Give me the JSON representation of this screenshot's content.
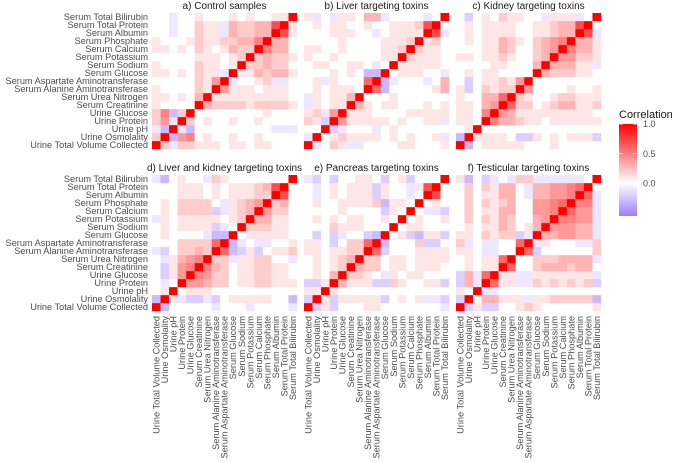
{
  "chart_data": {
    "type": "heatmap",
    "variables": [
      "Urine Total Volume Collected",
      "Urine Osmolality",
      "Urine pH",
      "Urine Protein",
      "Urine Glucose",
      "Serum Creatinine",
      "Serum Urea Nitrogen",
      "Serum Alanine Aminotransferase",
      "Serum Aspartate Aminotransferase",
      "Serum Glucose",
      "Serum Sodium",
      "Serum Potassium",
      "Serum Calcium",
      "Serum Phosphate",
      "Serum Albumin",
      "Serum Total Protein",
      "Serum Total Bilirubin"
    ],
    "matrix_format": "lower triangle, row i lists correlation with variables 0..i-1; diagonal = 1; symmetric",
    "legend": {
      "title": "Correlation",
      "ticks": [
        1.0,
        0.5,
        0.0
      ],
      "tick_labels": [
        "1.0",
        "0.5",
        "0.0"
      ],
      "range": [
        -0.55,
        1.0
      ],
      "position": "right"
    },
    "colors": {
      "high": "#ff0000",
      "mid": "#ffffff",
      "low": "#a07cff"
    },
    "panels": [
      {
        "title": "a) Control samples",
        "lower": [
          [],
          [
            0.2
          ],
          [
            -0.1,
            -0.3
          ],
          [
            0.2,
            0.4,
            -0.1
          ],
          [
            0.2,
            0.5,
            -0.3,
            0.2
          ],
          [
            0.1,
            0.0,
            0.0,
            0.0,
            0.0
          ],
          [
            0.1,
            0.1,
            0.0,
            0.1,
            0.0,
            0.3
          ],
          [
            0.1,
            0.0,
            0.0,
            0.0,
            0.0,
            0.2,
            0.1
          ],
          [
            0.0,
            0.0,
            0.0,
            0.0,
            0.0,
            0.2,
            0.1,
            0.4
          ],
          [
            0.1,
            0.1,
            0.0,
            0.1,
            0.0,
            0.2,
            0.1,
            0.1,
            -0.1
          ],
          [
            0.1,
            0.0,
            0.0,
            0.0,
            0.0,
            0.2,
            0.1,
            0.1,
            0.0,
            0.1
          ],
          [
            0.0,
            0.0,
            0.0,
            0.0,
            0.0,
            0.1,
            0.1,
            0.1,
            0.0,
            0.1,
            0.2
          ],
          [
            0.1,
            0.1,
            0.0,
            0.1,
            0.0,
            0.2,
            0.1,
            0.0,
            0.1,
            0.3,
            0.2,
            0.2
          ],
          [
            0.1,
            0.0,
            0.0,
            0.0,
            0.1,
            0.2,
            0.1,
            0.1,
            0.2,
            0.2,
            0.3,
            0.3,
            0.5
          ],
          [
            0.0,
            0.0,
            -0.1,
            0.0,
            0.0,
            0.2,
            0.1,
            0.1,
            -0.1,
            0.3,
            0.2,
            0.2,
            0.3,
            0.3
          ],
          [
            0.0,
            0.0,
            -0.1,
            0.0,
            0.0,
            0.2,
            0.1,
            0.1,
            -0.1,
            0.3,
            0.2,
            0.2,
            0.3,
            0.3,
            0.7
          ],
          [
            0.0,
            0.0,
            -0.1,
            0.0,
            0.0,
            0.1,
            0.0,
            0.0,
            0.0,
            0.1,
            0.0,
            0.1,
            0.0,
            0.0,
            0.1,
            0.1
          ]
        ]
      },
      {
        "title": "b) Liver targeting toxins",
        "lower": [
          [],
          [
            -0.1
          ],
          [
            0.0,
            0.0
          ],
          [
            0.2,
            0.1,
            -0.2
          ],
          [
            0.1,
            0.2,
            -0.1,
            0.4
          ],
          [
            -0.1,
            0.1,
            0.0,
            0.1,
            0.1
          ],
          [
            -0.1,
            0.1,
            0.0,
            0.1,
            0.1,
            0.3
          ],
          [
            0.0,
            0.1,
            0.0,
            0.1,
            0.1,
            0.1,
            0.0
          ],
          [
            0.0,
            0.1,
            -0.1,
            0.1,
            0.0,
            0.0,
            0.0,
            0.6
          ],
          [
            0.0,
            0.0,
            0.0,
            0.1,
            0.0,
            0.1,
            0.0,
            -0.3,
            -0.3
          ],
          [
            0.0,
            0.1,
            0.1,
            0.0,
            0.0,
            0.1,
            0.1,
            0.0,
            -0.1,
            0.0
          ],
          [
            0.1,
            0.0,
            0.0,
            0.1,
            0.0,
            0.0,
            0.0,
            0.0,
            0.0,
            0.1,
            0.1
          ],
          [
            0.1,
            0.1,
            0.0,
            0.0,
            0.1,
            0.0,
            0.0,
            0.0,
            0.0,
            0.1,
            0.1,
            0.2
          ],
          [
            0.0,
            0.0,
            0.0,
            0.0,
            0.1,
            0.0,
            0.0,
            0.0,
            0.0,
            0.1,
            0.1,
            0.1,
            0.2
          ],
          [
            0.0,
            0.0,
            0.0,
            0.1,
            0.1,
            0.1,
            0.0,
            0.0,
            -0.1,
            0.0,
            0.1,
            0.1,
            0.1,
            0.1
          ],
          [
            0.0,
            0.1,
            0.0,
            0.1,
            0.1,
            0.0,
            0.0,
            0.1,
            0.0,
            0.0,
            0.1,
            0.1,
            0.1,
            0.2,
            0.7
          ],
          [
            0.1,
            -0.1,
            0.0,
            -0.1,
            0.1,
            0.1,
            0.0,
            0.3,
            0.3,
            -0.1,
            0.0,
            0.0,
            0.0,
            0.0,
            -0.1,
            0.0
          ]
        ]
      },
      {
        "title": "c) Kidney targeting toxins",
        "lower": [
          [],
          [
            -0.3
          ],
          [
            0.0,
            0.1
          ],
          [
            0.1,
            0.1,
            0.0
          ],
          [
            0.1,
            0.1,
            0.0,
            0.5
          ],
          [
            0.1,
            0.1,
            0.0,
            0.3,
            0.4
          ],
          [
            0.1,
            0.0,
            0.0,
            0.3,
            0.3,
            0.6
          ],
          [
            0.1,
            -0.2,
            0.0,
            0.2,
            0.1,
            0.2,
            0.2
          ],
          [
            0.0,
            -0.2,
            0.0,
            0.1,
            0.1,
            0.2,
            0.1,
            0.4
          ],
          [
            0.0,
            0.1,
            0.0,
            0.1,
            0.1,
            0.0,
            0.0,
            0.0,
            0.0
          ],
          [
            0.0,
            0.0,
            0.0,
            0.0,
            0.1,
            0.1,
            0.0,
            0.0,
            0.0,
            0.3
          ],
          [
            0.1,
            0.1,
            0.0,
            0.1,
            0.1,
            0.2,
            0.1,
            0.0,
            0.0,
            0.2,
            0.3
          ],
          [
            0.0,
            0.0,
            0.0,
            0.1,
            0.1,
            0.3,
            0.2,
            0.0,
            0.0,
            0.2,
            0.3,
            0.4
          ],
          [
            0.0,
            0.1,
            0.0,
            0.1,
            0.1,
            0.3,
            0.2,
            0.1,
            0.0,
            0.2,
            0.3,
            0.4,
            0.5
          ],
          [
            0.0,
            0.1,
            0.0,
            0.1,
            0.1,
            0.1,
            0.1,
            0.0,
            0.0,
            0.1,
            0.1,
            0.2,
            0.3,
            0.3
          ],
          [
            0.0,
            0.1,
            0.0,
            0.1,
            0.1,
            0.1,
            0.1,
            0.0,
            0.0,
            0.1,
            0.1,
            0.2,
            0.3,
            0.3,
            0.7
          ],
          [
            0.0,
            -0.2,
            0.0,
            0.1,
            0.0,
            0.2,
            0.1,
            0.1,
            0.0,
            0.0,
            -0.1,
            0.1,
            0.1,
            0.1,
            -0.1,
            0.0
          ]
        ]
      },
      {
        "title": "d) Liver and kidney targeting toxins",
        "lower": [
          [],
          [
            -0.3
          ],
          [
            0.0,
            0.1
          ],
          [
            0.0,
            -0.1,
            0.0
          ],
          [
            0.0,
            -0.2,
            0.1,
            0.4
          ],
          [
            0.0,
            -0.2,
            0.1,
            0.4,
            0.5
          ],
          [
            0.0,
            -0.1,
            0.1,
            0.3,
            0.4,
            0.5
          ],
          [
            -0.1,
            -0.2,
            0.0,
            0.2,
            0.2,
            0.3,
            0.2
          ],
          [
            0.0,
            0.0,
            0.0,
            0.2,
            0.2,
            0.2,
            0.2,
            0.6
          ],
          [
            0.0,
            0.1,
            0.0,
            0.0,
            0.0,
            0.0,
            -0.1,
            -0.3,
            -0.3
          ],
          [
            0.0,
            0.1,
            0.0,
            0.1,
            0.1,
            0.1,
            0.1,
            -0.2,
            -0.1,
            0.0
          ],
          [
            -0.1,
            0.1,
            0.0,
            0.1,
            0.1,
            0.1,
            0.1,
            0.1,
            0.0,
            0.1,
            0.2
          ],
          [
            0.0,
            0.1,
            0.0,
            0.2,
            0.2,
            0.2,
            0.2,
            -0.2,
            -0.1,
            0.1,
            0.2,
            0.3
          ],
          [
            0.0,
            0.1,
            0.0,
            0.2,
            0.2,
            0.2,
            0.2,
            0.0,
            -0.1,
            0.1,
            0.2,
            0.3,
            0.4
          ],
          [
            0.0,
            0.0,
            0.0,
            0.1,
            0.1,
            0.1,
            0.0,
            0.1,
            0.0,
            0.1,
            0.1,
            0.1,
            0.2,
            0.2
          ],
          [
            0.0,
            0.0,
            0.0,
            0.1,
            0.1,
            0.1,
            0.0,
            0.1,
            0.0,
            0.1,
            0.1,
            0.1,
            0.2,
            0.3,
            0.7
          ],
          [
            -0.1,
            -0.3,
            0.0,
            0.1,
            0.0,
            0.0,
            -0.1,
            0.2,
            0.1,
            0.0,
            0.0,
            0.0,
            0.0,
            0.0,
            0.0,
            0.0
          ]
        ]
      },
      {
        "title": "e) Pancreas targeting toxins",
        "lower": [
          [],
          [
            -0.2
          ],
          [
            0.1,
            0.1
          ],
          [
            -0.2,
            -0.2,
            0.1
          ],
          [
            0.0,
            0.1,
            0.0,
            0.3
          ],
          [
            0.0,
            0.1,
            0.0,
            0.1,
            0.2
          ],
          [
            0.0,
            0.1,
            0.0,
            0.1,
            0.2,
            0.3
          ],
          [
            0.1,
            0.1,
            0.0,
            0.1,
            0.1,
            0.2,
            0.2
          ],
          [
            0.1,
            0.1,
            0.0,
            -0.2,
            0.0,
            0.2,
            0.2,
            0.6
          ],
          [
            0.0,
            -0.2,
            0.0,
            -0.2,
            -0.1,
            0.0,
            0.0,
            -0.2,
            -0.3
          ],
          [
            0.0,
            0.0,
            0.0,
            0.2,
            0.1,
            0.1,
            0.1,
            0.0,
            0.0,
            0.0
          ],
          [
            0.0,
            0.1,
            0.0,
            0.1,
            0.0,
            0.1,
            0.1,
            0.0,
            0.0,
            0.1,
            0.0
          ],
          [
            0.0,
            0.0,
            0.0,
            0.0,
            0.1,
            0.0,
            0.0,
            0.0,
            0.0,
            -0.2,
            0.1,
            0.0
          ],
          [
            0.0,
            0.1,
            0.0,
            0.0,
            0.1,
            0.1,
            0.1,
            0.1,
            0.2,
            -0.3,
            0.1,
            0.1,
            0.0
          ],
          [
            0.0,
            -0.1,
            0.0,
            0.1,
            0.0,
            0.1,
            0.1,
            0.1,
            -0.2,
            0.1,
            0.0,
            0.0,
            -0.1,
            0.0
          ],
          [
            0.0,
            -0.1,
            0.0,
            0.1,
            0.0,
            0.1,
            0.1,
            0.1,
            -0.2,
            0.1,
            0.0,
            0.0,
            -0.1,
            0.1,
            0.7
          ],
          [
            -0.1,
            -0.2,
            0.0,
            -0.2,
            0.0,
            0.0,
            0.1,
            0.1,
            0.0,
            -0.2,
            0.0,
            0.1,
            -0.2,
            0.0,
            0.0,
            0.0
          ]
        ]
      },
      {
        "title": "f) Testicular targeting toxins",
        "lower": [
          [],
          [
            -0.2
          ],
          [
            0.1,
            0.0
          ],
          [
            -0.2,
            0.3,
            -0.1
          ],
          [
            -0.2,
            0.3,
            -0.1,
            0.6
          ],
          [
            0.0,
            0.1,
            0.0,
            0.1,
            0.1
          ],
          [
            0.0,
            0.1,
            0.0,
            0.1,
            0.1,
            0.6
          ],
          [
            0.1,
            0.1,
            0.0,
            -0.1,
            -0.1,
            0.0,
            0.0
          ],
          [
            0.2,
            -0.1,
            0.0,
            -0.1,
            -0.1,
            0.0,
            0.0,
            0.6
          ],
          [
            0.1,
            0.1,
            0.0,
            0.2,
            0.1,
            0.2,
            0.2,
            -0.2,
            -0.1
          ],
          [
            0.0,
            0.1,
            0.0,
            0.1,
            0.1,
            0.3,
            0.2,
            0.0,
            0.1,
            0.3
          ],
          [
            0.0,
            0.2,
            0.0,
            0.2,
            0.1,
            0.3,
            0.2,
            0.0,
            0.0,
            0.3,
            0.4
          ],
          [
            0.0,
            0.2,
            0.0,
            0.1,
            0.1,
            0.3,
            0.3,
            0.0,
            0.0,
            0.4,
            0.4,
            0.5
          ],
          [
            0.0,
            0.2,
            0.0,
            0.2,
            0.1,
            0.2,
            0.3,
            0.0,
            0.0,
            0.4,
            0.4,
            0.5,
            0.6
          ],
          [
            0.0,
            0.2,
            0.0,
            0.1,
            0.1,
            0.3,
            0.3,
            0.0,
            -0.1,
            0.3,
            0.3,
            0.4,
            0.4,
            0.5
          ],
          [
            0.0,
            0.2,
            0.0,
            0.2,
            0.1,
            0.3,
            0.3,
            0.0,
            -0.1,
            0.3,
            0.3,
            0.4,
            0.4,
            0.5,
            0.6
          ],
          [
            0.1,
            -0.3,
            0.0,
            -0.2,
            -0.1,
            0.0,
            -0.1,
            0.2,
            0.2,
            -0.1,
            -0.1,
            -0.1,
            -0.1,
            -0.1,
            -0.1,
            0.0
          ]
        ]
      }
    ]
  }
}
